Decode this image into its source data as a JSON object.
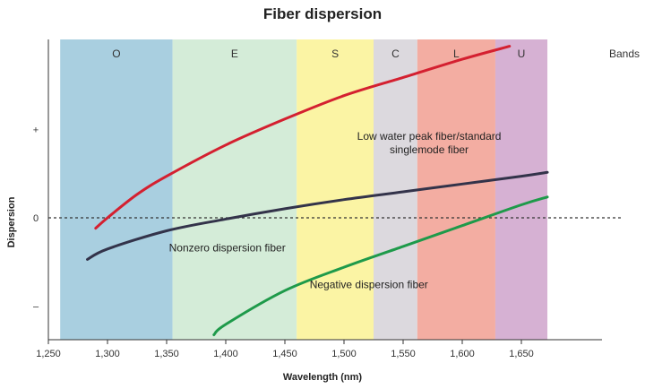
{
  "chart_data": {
    "type": "line",
    "title": "Fiber dispersion",
    "xlabel": "Wavelength (nm)",
    "ylabel": "Dispersion",
    "xlim": [
      1250,
      1685
    ],
    "ylim": [
      -4.5,
      6.5
    ],
    "x_ticks": [
      1250,
      1300,
      1350,
      1400,
      1450,
      1500,
      1550,
      1600,
      1650
    ],
    "x_tick_labels": [
      "1,250",
      "1,300",
      "1,350",
      "1,400",
      "1,450",
      "1,500",
      "1,550",
      "1,600",
      "1,650"
    ],
    "y_ticks": [
      {
        "value": 3.4,
        "label": "+"
      },
      {
        "value": 0,
        "label": "0"
      },
      {
        "value": -3.4,
        "label": "–"
      }
    ],
    "zero_line": {
      "value": 0,
      "style": "dashed"
    },
    "bands_label": "Bands",
    "bands": [
      {
        "name": "O",
        "start": 1260,
        "end": 1355,
        "color": "#a9cfe0"
      },
      {
        "name": "E",
        "start": 1355,
        "end": 1460,
        "color": "#d4ecd8"
      },
      {
        "name": "S",
        "start": 1460,
        "end": 1525,
        "color": "#fbf4a4"
      },
      {
        "name": "C",
        "start": 1525,
        "end": 1562,
        "color": "#dcd9de"
      },
      {
        "name": "L",
        "start": 1562,
        "end": 1628,
        "color": "#f3ada2"
      },
      {
        "name": "U",
        "start": 1628,
        "end": 1672,
        "color": "#d6b1d3"
      }
    ],
    "series": [
      {
        "name": "Low water peak fiber/standard singlemode fiber",
        "color": "#d42030",
        "x": [
          1290,
          1300,
          1325,
          1350,
          1400,
          1450,
          1500,
          1550,
          1600,
          1640
        ],
        "y": [
          -0.4,
          0.0,
          0.9,
          1.6,
          2.8,
          3.8,
          4.7,
          5.4,
          6.1,
          6.6
        ]
      },
      {
        "name": "Nonzero dispersion fiber",
        "color": "#33334a",
        "x": [
          1283,
          1300,
          1350,
          1400,
          1450,
          1500,
          1550,
          1600,
          1650,
          1672
        ],
        "y": [
          -1.6,
          -1.2,
          -0.5,
          -0.05,
          0.35,
          0.7,
          1.0,
          1.3,
          1.6,
          1.75
        ]
      },
      {
        "name": "Negative dispersion fiber",
        "color": "#1e9a4a",
        "x": [
          1390,
          1400,
          1450,
          1500,
          1550,
          1600,
          1650,
          1672
        ],
        "y": [
          -4.5,
          -4.1,
          -2.8,
          -1.9,
          -1.1,
          -0.3,
          0.5,
          0.8
        ]
      }
    ],
    "annotations": [
      {
        "lines": [
          "Low water peak fiber/standard",
          "singlemode fiber"
        ],
        "x": 1572,
        "y": 3.0,
        "anchor": "middle"
      },
      {
        "lines": [
          "Nonzero dispersion fiber"
        ],
        "x": 1352,
        "y": -1.3,
        "anchor": "start"
      },
      {
        "lines": [
          "Negative dispersion fiber"
        ],
        "x": 1471,
        "y": -2.7,
        "anchor": "start"
      }
    ],
    "grid": false,
    "legend": "none"
  }
}
